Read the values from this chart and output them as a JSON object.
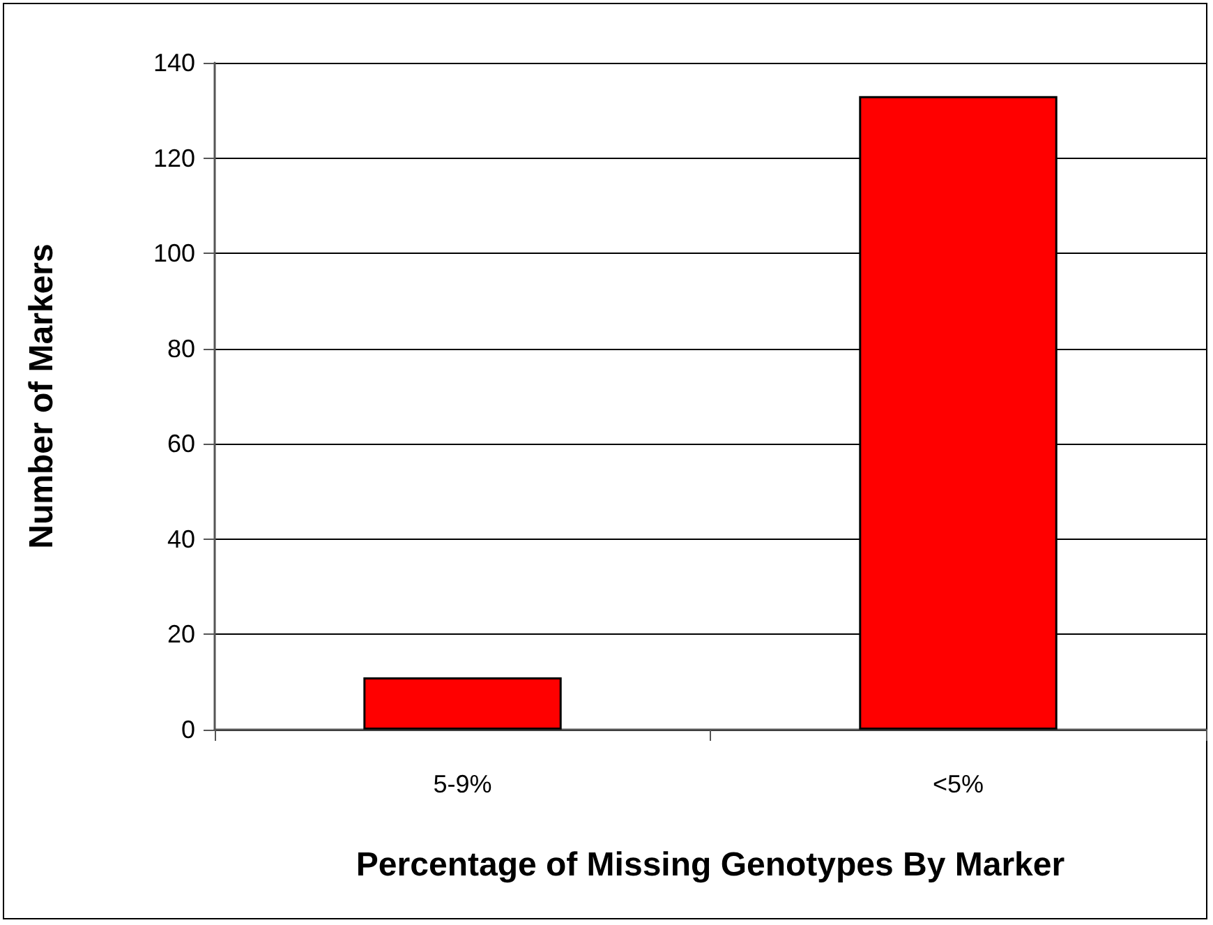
{
  "chart_data": {
    "type": "bar",
    "xlabel": "Percentage of Missing Genotypes By Marker",
    "ylabel": "Number of Markers",
    "categories": [
      "5-9%",
      "<5%"
    ],
    "values": [
      11,
      133
    ],
    "color": "#ff0000",
    "ylim": [
      0,
      140
    ],
    "yticks": [
      0,
      20,
      40,
      60,
      80,
      100,
      120,
      140
    ],
    "grid": "y"
  }
}
